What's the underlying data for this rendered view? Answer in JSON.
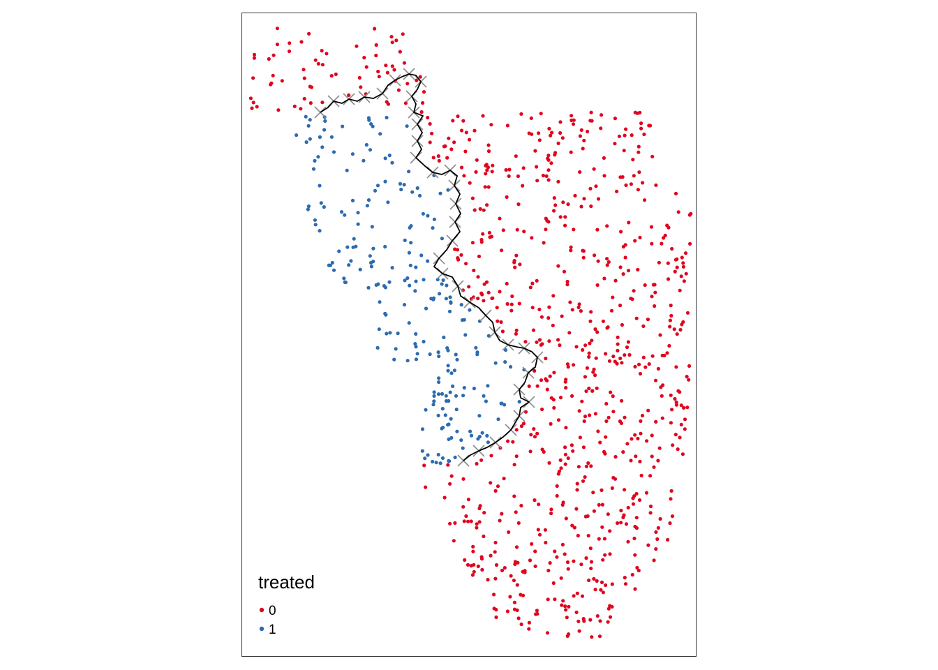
{
  "legend": {
    "title": "treated",
    "items": [
      {
        "label": "0",
        "color": "#E0061F"
      },
      {
        "label": "1",
        "color": "#2D6BB0"
      }
    ]
  },
  "colors": {
    "control": "#E0061F",
    "treated": "#2D6BB0",
    "boundary": "#000000",
    "boundary_points": "#8C8C8C",
    "frame": "#333333"
  },
  "markers": {
    "points": "circle",
    "boundary_points": "cross"
  }
}
